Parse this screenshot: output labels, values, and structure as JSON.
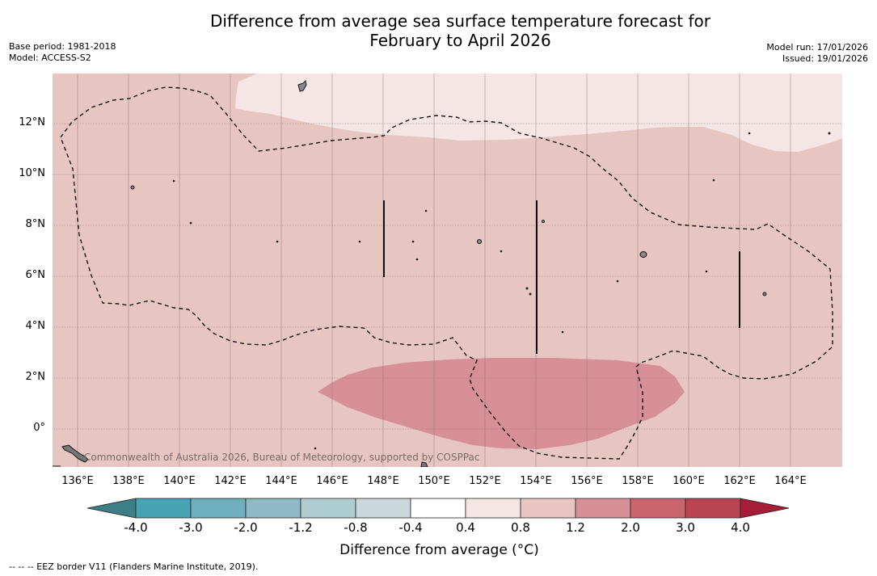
{
  "title_line1": "Difference from average sea surface temperature forecast for",
  "title_line2": "February to April 2026",
  "base_period": "Base period: 1981-2018",
  "model": "Model: ACCESS-S2",
  "model_run": "Model run: 17/01/2026",
  "issued": "Issued: 19/01/2026",
  "copyright": "Commonwealth of Australia 2026, Bureau of Meteorology, supported by COSPPac",
  "lat_labels": [
    "12°N",
    "10°N",
    "8°N",
    "6°N",
    "4°N",
    "2°N",
    "0°"
  ],
  "lon_labels": [
    "136°E",
    "138°E",
    "140°E",
    "142°E",
    "144°E",
    "146°E",
    "148°E",
    "150°E",
    "152°E",
    "154°E",
    "156°E",
    "158°E",
    "160°E",
    "162°E",
    "164°E"
  ],
  "colorbar": {
    "labels": [
      "-4.0",
      "-3.0",
      "-2.0",
      "-1.2",
      "-0.8",
      "-0.4",
      "0.4",
      "0.8",
      "1.2",
      "2.0",
      "3.0",
      "4.0"
    ],
    "title": "Difference from average (°C)",
    "colors": [
      "#3d7f86",
      "#47a3b4",
      "#6eaebd",
      "#8eb9c5",
      "#aecdd1",
      "#cad8dc",
      "#ffffff",
      "#f5e6e5",
      "#e8c5c1",
      "#d68f95",
      "#c8656d",
      "#b94552",
      "#a51d37"
    ]
  },
  "map_colors": {
    "background": "#e7c6c2",
    "pale_region": "#f5e6e5",
    "warm_region": "#d68f95",
    "land": "#777777"
  },
  "footnote": "--  --  -- EEZ border V11 (Flanders Marine Institute, 2019)."
}
